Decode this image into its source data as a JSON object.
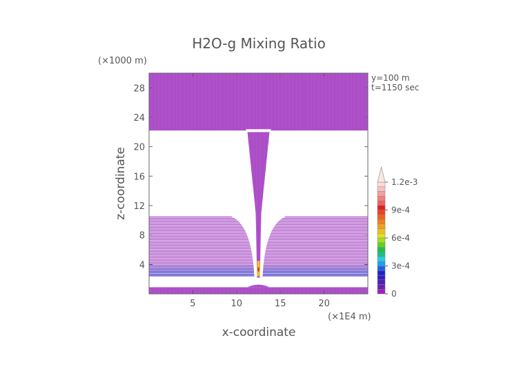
{
  "chart_data": {
    "type": "heatmap",
    "title": "H2O-g Mixing Ratio",
    "xlabel": "x-coordinate",
    "ylabel": "z-coordinate",
    "x_unit": "(×1E4 m)",
    "y_unit": "(×1000 m)",
    "annotations": [
      "y=100 m",
      "t=1150 sec"
    ],
    "xlim": [
      0,
      25
    ],
    "ylim": [
      0,
      30
    ],
    "x_ticks": [
      5,
      10,
      15,
      20
    ],
    "y_ticks": [
      4,
      8,
      12,
      16,
      20,
      24,
      28
    ],
    "colorbar": {
      "levels": [
        0,
        5e-05,
        0.0001,
        0.00015,
        0.0002,
        0.00025,
        0.0003,
        0.00035,
        0.0004,
        0.00045,
        0.0005,
        0.00055,
        0.0006,
        0.00065,
        0.0007,
        0.00075,
        0.0008,
        0.00085,
        0.0009,
        0.00095,
        0.001,
        0.00105,
        0.0011,
        0.00115,
        0.0012
      ],
      "colors": [
        "#a020c0",
        "#7020b0",
        "#5020b8",
        "#3020c0",
        "#2020d0",
        "#2060e0",
        "#20a0f0",
        "#20d0e0",
        "#20c080",
        "#20c040",
        "#60d020",
        "#a0e020",
        "#e0e020",
        "#f0c020",
        "#f0a020",
        "#f08020",
        "#f06020",
        "#f04020",
        "#e02020",
        "#f06060",
        "#f08080",
        "#f0a0a0",
        "#f8c0c0",
        "#fadcd4"
      ],
      "tick_labels": [
        "0",
        "3e-4",
        "6e-4",
        "9e-4",
        "1.2e-3"
      ],
      "tick_values": [
        0,
        0.0003,
        0.0006,
        0.0009,
        0.0012
      ]
    },
    "regions": {
      "upper_layer_z": [
        22.2,
        30
      ],
      "middle_layers_z": [
        2.4,
        10.6
      ],
      "surface_layer_z": [
        0,
        0.9
      ],
      "plume_center_x": 12.5,
      "plume_top_z": 22,
      "max_value_location": {
        "x": 12.5,
        "z": 3
      }
    }
  }
}
